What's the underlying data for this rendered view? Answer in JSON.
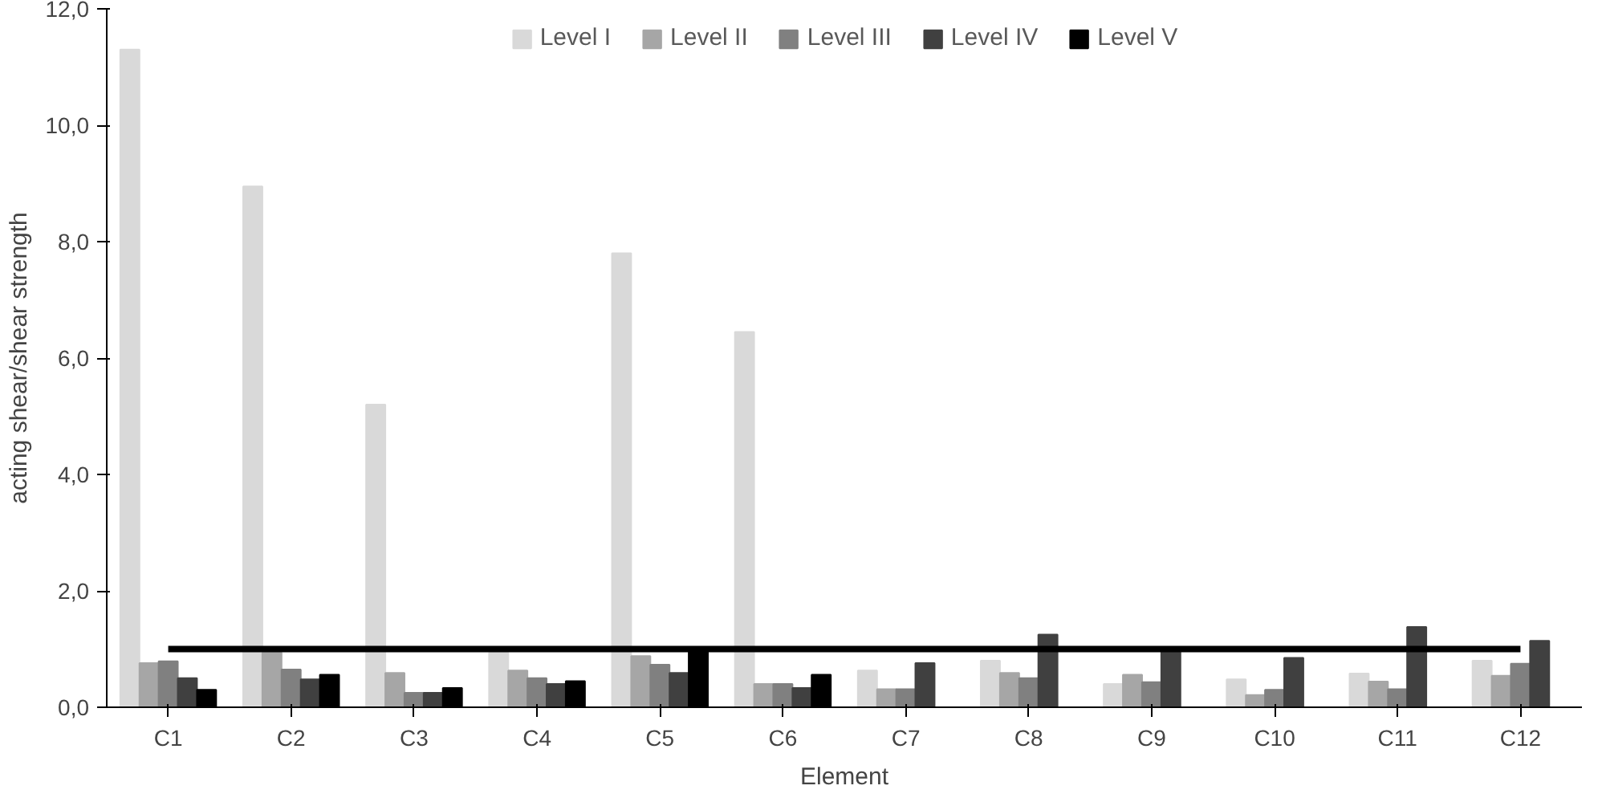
{
  "chart_data": {
    "type": "bar",
    "xlabel": "Element",
    "ylabel": "acting shear/shear strength",
    "categories": [
      "C1",
      "C2",
      "C3",
      "C4",
      "C5",
      "C6",
      "C7",
      "C8",
      "C9",
      "C10",
      "C11",
      "C12"
    ],
    "series": [
      {
        "name": "Level I",
        "color": "#d9d9d9",
        "values": [
          11.3,
          8.95,
          5.2,
          0.94,
          7.8,
          6.45,
          0.63,
          0.8,
          0.4,
          0.48,
          0.58,
          0.8
        ]
      },
      {
        "name": "Level II",
        "color": "#a6a6a6",
        "values": [
          0.76,
          0.94,
          0.59,
          0.63,
          0.88,
          0.4,
          0.31,
          0.59,
          0.56,
          0.21,
          0.44,
          0.54
        ]
      },
      {
        "name": "Level III",
        "color": "#808080",
        "values": [
          0.79,
          0.65,
          0.25,
          0.5,
          0.73,
          0.4,
          0.31,
          0.5,
          0.43,
          0.3,
          0.31,
          0.75
        ]
      },
      {
        "name": "Level IV",
        "color": "#404040",
        "values": [
          0.5,
          0.48,
          0.25,
          0.4,
          0.59,
          0.33,
          0.76,
          1.25,
          1.02,
          0.85,
          1.38,
          1.14
        ]
      },
      {
        "name": "Level V",
        "color": "#000000",
        "values": [
          0.3,
          0.56,
          0.33,
          0.45,
          0.99,
          0.56,
          null,
          null,
          null,
          null,
          null,
          null
        ]
      },
      {
        "type": "line",
        "color": "#000000",
        "values": [
          1.0,
          1.0,
          1.0,
          1.0,
          1.0,
          1.0,
          1.0,
          1.0,
          1.0,
          1.0,
          1.0,
          1.0
        ]
      }
    ],
    "ylim": [
      0,
      12
    ],
    "yticks": [
      {
        "value": 0,
        "label": "0,0"
      },
      {
        "value": 2,
        "label": "2,0"
      },
      {
        "value": 4,
        "label": "4,0"
      },
      {
        "value": 6,
        "label": "6,0"
      },
      {
        "value": 8,
        "label": "8,0"
      },
      {
        "value": 10,
        "label": "10,0"
      },
      {
        "value": 12,
        "label": "12,0"
      }
    ],
    "grid": false,
    "legend": "top"
  }
}
